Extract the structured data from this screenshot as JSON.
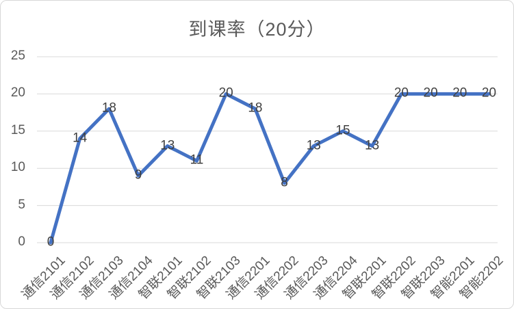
{
  "chart_data": {
    "type": "line",
    "title": "到课率（20分）",
    "categories": [
      "通信2101",
      "通信2102",
      "通信2103",
      "通信2104",
      "智联2101",
      "智联2102",
      "智联2103",
      "通信2201",
      "通信2202",
      "通信2203",
      "通信2204",
      "智联2201",
      "智联2202",
      "智联2203",
      "智能2201",
      "智能2202"
    ],
    "values": [
      0,
      14,
      18,
      9,
      13,
      11,
      20,
      18,
      8,
      13,
      15,
      13,
      20,
      20,
      20,
      20
    ],
    "data_labels_shown": [
      0,
      14,
      18,
      9,
      13,
      11,
      20,
      18,
      8,
      13,
      15,
      13,
      20,
      20,
      20,
      20
    ],
    "xlabel": "",
    "ylabel": "",
    "ylim": [
      0,
      25
    ],
    "y_ticks": [
      0,
      5,
      10,
      15,
      20,
      25
    ],
    "grid": true,
    "legend_position": "none",
    "data_label_position": "center",
    "colors": {
      "line": "#4472C4",
      "title_text": "#595959",
      "axis_text": "#595959",
      "data_label_text": "#404040",
      "gridline": "#d9d9d9",
      "frame_border": "#d7d7d7",
      "background": "#ffffff"
    }
  }
}
